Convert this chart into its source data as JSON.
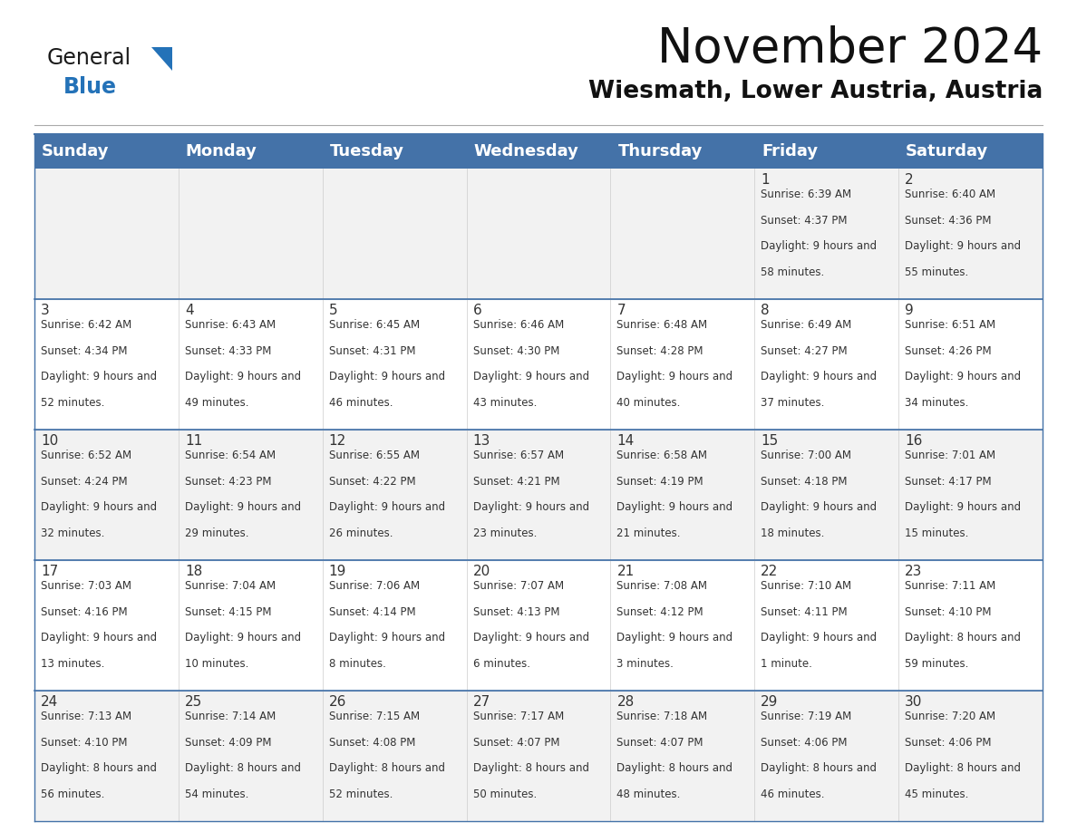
{
  "title": "November 2024",
  "subtitle": "Wiesmath, Lower Austria, Austria",
  "header_bg": "#4472A8",
  "header_text_color": "#FFFFFF",
  "cell_bg_light": "#F2F2F2",
  "cell_bg_white": "#FFFFFF",
  "border_color": "#4472A8",
  "text_color": "#333333",
  "day_headers": [
    "Sunday",
    "Monday",
    "Tuesday",
    "Wednesday",
    "Thursday",
    "Friday",
    "Saturday"
  ],
  "title_fontsize": 38,
  "subtitle_fontsize": 19,
  "header_fontsize": 13,
  "cell_day_fontsize": 11,
  "cell_info_fontsize": 8.5,
  "days": [
    {
      "day": 1,
      "col": 5,
      "row": 0,
      "sunrise": "6:39 AM",
      "sunset": "4:37 PM",
      "daylight": "9 hours and 58 minutes."
    },
    {
      "day": 2,
      "col": 6,
      "row": 0,
      "sunrise": "6:40 AM",
      "sunset": "4:36 PM",
      "daylight": "9 hours and 55 minutes."
    },
    {
      "day": 3,
      "col": 0,
      "row": 1,
      "sunrise": "6:42 AM",
      "sunset": "4:34 PM",
      "daylight": "9 hours and 52 minutes."
    },
    {
      "day": 4,
      "col": 1,
      "row": 1,
      "sunrise": "6:43 AM",
      "sunset": "4:33 PM",
      "daylight": "9 hours and 49 minutes."
    },
    {
      "day": 5,
      "col": 2,
      "row": 1,
      "sunrise": "6:45 AM",
      "sunset": "4:31 PM",
      "daylight": "9 hours and 46 minutes."
    },
    {
      "day": 6,
      "col": 3,
      "row": 1,
      "sunrise": "6:46 AM",
      "sunset": "4:30 PM",
      "daylight": "9 hours and 43 minutes."
    },
    {
      "day": 7,
      "col": 4,
      "row": 1,
      "sunrise": "6:48 AM",
      "sunset": "4:28 PM",
      "daylight": "9 hours and 40 minutes."
    },
    {
      "day": 8,
      "col": 5,
      "row": 1,
      "sunrise": "6:49 AM",
      "sunset": "4:27 PM",
      "daylight": "9 hours and 37 minutes."
    },
    {
      "day": 9,
      "col": 6,
      "row": 1,
      "sunrise": "6:51 AM",
      "sunset": "4:26 PM",
      "daylight": "9 hours and 34 minutes."
    },
    {
      "day": 10,
      "col": 0,
      "row": 2,
      "sunrise": "6:52 AM",
      "sunset": "4:24 PM",
      "daylight": "9 hours and 32 minutes."
    },
    {
      "day": 11,
      "col": 1,
      "row": 2,
      "sunrise": "6:54 AM",
      "sunset": "4:23 PM",
      "daylight": "9 hours and 29 minutes."
    },
    {
      "day": 12,
      "col": 2,
      "row": 2,
      "sunrise": "6:55 AM",
      "sunset": "4:22 PM",
      "daylight": "9 hours and 26 minutes."
    },
    {
      "day": 13,
      "col": 3,
      "row": 2,
      "sunrise": "6:57 AM",
      "sunset": "4:21 PM",
      "daylight": "9 hours and 23 minutes."
    },
    {
      "day": 14,
      "col": 4,
      "row": 2,
      "sunrise": "6:58 AM",
      "sunset": "4:19 PM",
      "daylight": "9 hours and 21 minutes."
    },
    {
      "day": 15,
      "col": 5,
      "row": 2,
      "sunrise": "7:00 AM",
      "sunset": "4:18 PM",
      "daylight": "9 hours and 18 minutes."
    },
    {
      "day": 16,
      "col": 6,
      "row": 2,
      "sunrise": "7:01 AM",
      "sunset": "4:17 PM",
      "daylight": "9 hours and 15 minutes."
    },
    {
      "day": 17,
      "col": 0,
      "row": 3,
      "sunrise": "7:03 AM",
      "sunset": "4:16 PM",
      "daylight": "9 hours and 13 minutes."
    },
    {
      "day": 18,
      "col": 1,
      "row": 3,
      "sunrise": "7:04 AM",
      "sunset": "4:15 PM",
      "daylight": "9 hours and 10 minutes."
    },
    {
      "day": 19,
      "col": 2,
      "row": 3,
      "sunrise": "7:06 AM",
      "sunset": "4:14 PM",
      "daylight": "9 hours and 8 minutes."
    },
    {
      "day": 20,
      "col": 3,
      "row": 3,
      "sunrise": "7:07 AM",
      "sunset": "4:13 PM",
      "daylight": "9 hours and 6 minutes."
    },
    {
      "day": 21,
      "col": 4,
      "row": 3,
      "sunrise": "7:08 AM",
      "sunset": "4:12 PM",
      "daylight": "9 hours and 3 minutes."
    },
    {
      "day": 22,
      "col": 5,
      "row": 3,
      "sunrise": "7:10 AM",
      "sunset": "4:11 PM",
      "daylight": "9 hours and 1 minute."
    },
    {
      "day": 23,
      "col": 6,
      "row": 3,
      "sunrise": "7:11 AM",
      "sunset": "4:10 PM",
      "daylight": "8 hours and 59 minutes."
    },
    {
      "day": 24,
      "col": 0,
      "row": 4,
      "sunrise": "7:13 AM",
      "sunset": "4:10 PM",
      "daylight": "8 hours and 56 minutes."
    },
    {
      "day": 25,
      "col": 1,
      "row": 4,
      "sunrise": "7:14 AM",
      "sunset": "4:09 PM",
      "daylight": "8 hours and 54 minutes."
    },
    {
      "day": 26,
      "col": 2,
      "row": 4,
      "sunrise": "7:15 AM",
      "sunset": "4:08 PM",
      "daylight": "8 hours and 52 minutes."
    },
    {
      "day": 27,
      "col": 3,
      "row": 4,
      "sunrise": "7:17 AM",
      "sunset": "4:07 PM",
      "daylight": "8 hours and 50 minutes."
    },
    {
      "day": 28,
      "col": 4,
      "row": 4,
      "sunrise": "7:18 AM",
      "sunset": "4:07 PM",
      "daylight": "8 hours and 48 minutes."
    },
    {
      "day": 29,
      "col": 5,
      "row": 4,
      "sunrise": "7:19 AM",
      "sunset": "4:06 PM",
      "daylight": "8 hours and 46 minutes."
    },
    {
      "day": 30,
      "col": 6,
      "row": 4,
      "sunrise": "7:20 AM",
      "sunset": "4:06 PM",
      "daylight": "8 hours and 45 minutes."
    }
  ],
  "logo_general_color": "#1a1a1a",
  "logo_blue_color": "#2472B8",
  "logo_triangle_color": "#2472B8"
}
